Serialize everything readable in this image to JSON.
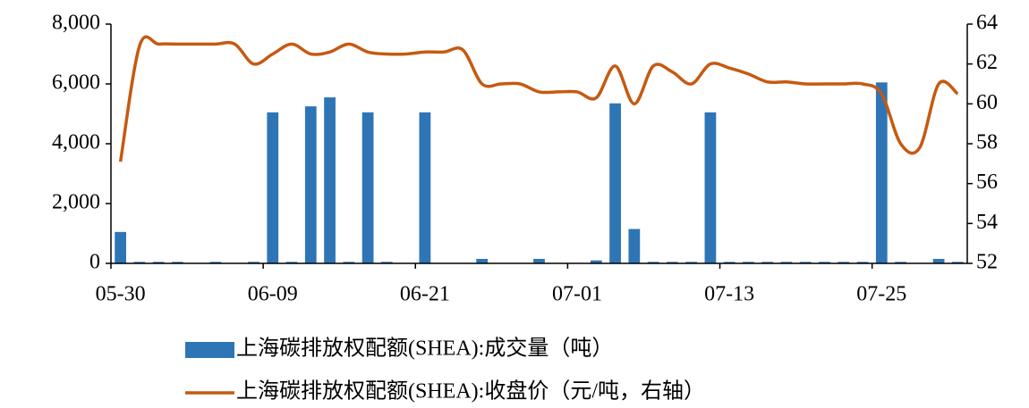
{
  "chart_data": {
    "type": "bar-line",
    "categories": [
      "05-30",
      null,
      null,
      null,
      null,
      null,
      null,
      null,
      "06-09",
      null,
      null,
      null,
      null,
      null,
      null,
      null,
      "06-21",
      null,
      null,
      null,
      null,
      null,
      null,
      null,
      "07-01",
      null,
      null,
      null,
      null,
      null,
      null,
      null,
      "07-13",
      null,
      null,
      null,
      null,
      null,
      null,
      null,
      "07-25",
      null,
      null,
      null,
      null
    ],
    "series": [
      {
        "name": "上海碳排放权配额(SHEA):成交量（吨）",
        "type": "bar",
        "color": "#2e75b6",
        "values": [
          1050,
          50,
          50,
          50,
          0,
          50,
          0,
          50,
          5050,
          50,
          5250,
          5550,
          50,
          5050,
          50,
          0,
          5050,
          0,
          0,
          150,
          0,
          0,
          150,
          0,
          0,
          100,
          5350,
          1150,
          50,
          50,
          50,
          5050,
          50,
          50,
          50,
          50,
          50,
          50,
          50,
          50,
          6050,
          50,
          0,
          150,
          50
        ]
      },
      {
        "name": "上海碳排放权配额(SHEA):收盘价（元/吨，右轴）",
        "type": "line",
        "axis": "y2",
        "color": "#c55a11",
        "values": [
          57.1,
          62.9,
          63.0,
          63.0,
          63.0,
          63.0,
          63.0,
          62.0,
          62.5,
          63.0,
          62.5,
          62.6,
          63.0,
          62.6,
          62.5,
          62.5,
          62.6,
          62.6,
          62.7,
          61.0,
          61.0,
          61.0,
          60.6,
          60.6,
          60.6,
          60.3,
          61.9,
          60.0,
          61.9,
          61.6,
          61.0,
          62.0,
          61.8,
          61.5,
          61.1,
          61.1,
          61.0,
          61.0,
          61.0,
          61.0,
          60.5,
          58.0,
          57.8,
          61.0,
          60.5
        ]
      }
    ],
    "ylim": [
      0,
      8000
    ],
    "yticks": [
      0,
      {
        "value": 2000,
        "label": "2,000"
      },
      {
        "value": 4000,
        "label": "4,000"
      },
      {
        "value": 6000,
        "label": "6,000"
      },
      {
        "value": 8000,
        "label": "8,000"
      }
    ],
    "y2lim": [
      52,
      64
    ],
    "y2ticks": [
      52,
      54,
      56,
      58,
      60,
      62,
      64
    ]
  }
}
